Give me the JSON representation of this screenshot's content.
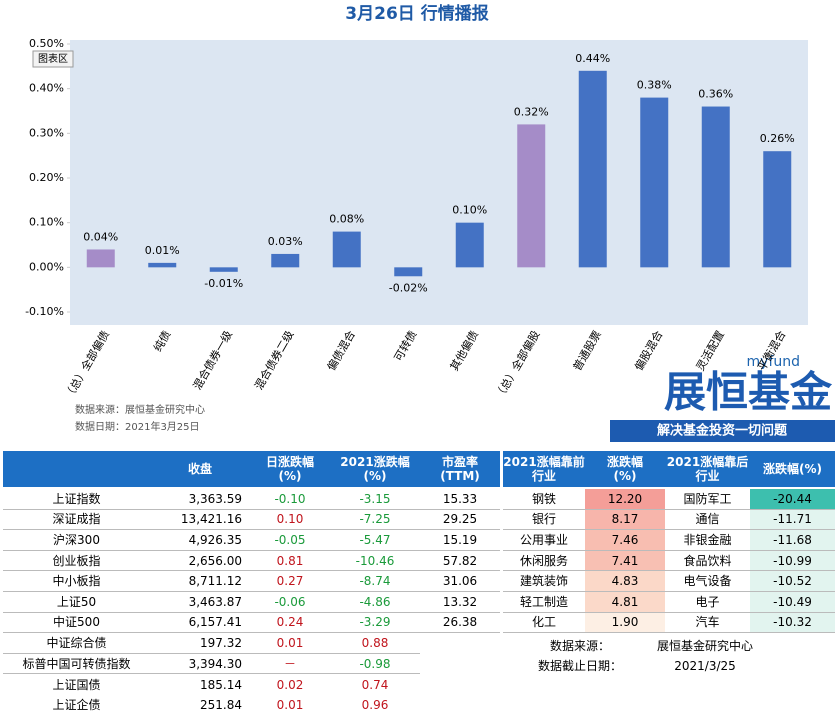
{
  "chart_data": {
    "type": "bar",
    "title": "3月26日 行情播报",
    "tooltip": "图表区",
    "categories": [
      "（总）全部偏债",
      "纯债",
      "混合债券一级",
      "混合债券二级",
      "偏债混合",
      "可转债",
      "其他偏债",
      "（总）全部偏股",
      "普通股票",
      "偏股混合",
      "灵活配置",
      "平衡混合"
    ],
    "values": [
      0.04,
      0.01,
      -0.01,
      0.03,
      0.08,
      -0.02,
      0.1,
      0.32,
      0.44,
      0.38,
      0.36,
      0.26
    ],
    "value_labels": [
      "0.04%",
      "0.01%",
      "-0.01%",
      "0.03%",
      "0.08%",
      "-0.02%",
      "0.10%",
      "0.32%",
      "0.44%",
      "0.38%",
      "0.36%",
      "0.26%"
    ],
    "colors": [
      "#a58cc8",
      "#4472c4",
      "#4472c4",
      "#4472c4",
      "#4472c4",
      "#4472c4",
      "#4472c4",
      "#a58cc8",
      "#4472c4",
      "#4472c4",
      "#4472c4",
      "#4472c4"
    ],
    "ylim": [
      -0.1,
      0.5
    ],
    "yticks": [
      {
        "value": -0.1,
        "label": "-0.10%"
      },
      {
        "value": 0,
        "label": "0.00%"
      },
      {
        "value": 0.1,
        "label": "0.10%"
      },
      {
        "value": 0.2,
        "label": "0.20%"
      },
      {
        "value": 0.3,
        "label": "0.30%"
      },
      {
        "value": 0.4,
        "label": "0.40%"
      },
      {
        "value": 0.5,
        "label": "0.50%"
      }
    ]
  },
  "notes": [
    "数据来源：展恒基金研究中心",
    "数据日期：2021年3月25日"
  ],
  "logo": {
    "small": "myfund",
    "name": "展恒基金",
    "slogan": "解决基金投资一切问题"
  },
  "left_table": {
    "header": [
      "收盘",
      "日涨跌幅\n(%)",
      "2021涨跌幅\n(%)",
      "市盈率\n(TTM)"
    ],
    "rows": [
      [
        "上证指数",
        "3,363.59",
        "-0.10",
        "-3.15",
        "15.33"
      ],
      [
        "深证成指",
        "13,421.16",
        "0.10",
        "-7.25",
        "29.25"
      ],
      [
        "沪深300",
        "4,926.35",
        "-0.05",
        "-5.47",
        "15.19"
      ],
      [
        "创业板指",
        "2,656.00",
        "0.81",
        "-10.46",
        "57.82"
      ],
      [
        "中小板指",
        "8,711.12",
        "0.27",
        "-8.74",
        "31.06"
      ],
      [
        "上证50",
        "3,463.87",
        "-0.06",
        "-4.86",
        "13.32"
      ],
      [
        "中证500",
        "6,157.41",
        "0.24",
        "-3.29",
        "26.38"
      ],
      [
        "中证综合债",
        "197.32",
        "0.01",
        "0.88"
      ],
      [
        "标普中国可转债指数",
        "3,394.30",
        "－",
        "-0.98"
      ],
      [
        "上证国债",
        "185.14",
        "0.02",
        "0.74"
      ],
      [
        "上证企债",
        "251.84",
        "0.01",
        "0.96"
      ]
    ]
  },
  "right_table": {
    "header": [
      "2021涨幅靠前\n行业",
      "涨跌幅\n(%)",
      "2021涨幅靠后\n行业",
      "涨跌幅(%)"
    ],
    "rows": [
      [
        "钢铁",
        "12.20",
        "国防军工",
        "-20.44"
      ],
      [
        "银行",
        "8.17",
        "通信",
        "-11.71"
      ],
      [
        "公用事业",
        "7.46",
        "非银金融",
        "-11.68"
      ],
      [
        "休闲服务",
        "7.41",
        "食品饮料",
        "-10.99"
      ],
      [
        "建筑装饰",
        "4.83",
        "电气设备",
        "-10.52"
      ],
      [
        "轻工制造",
        "4.81",
        "电子",
        "-10.49"
      ],
      [
        "化工",
        "1.90",
        "汽车",
        "-10.32"
      ]
    ],
    "top_colors": [
      "#f49e98",
      "#f7b5ab",
      "#f8beb1",
      "#f8c0b3",
      "#fbd8c8",
      "#fbd9c9",
      "#fdefe4"
    ],
    "bottom_colors": [
      "#3dbfae",
      "#e2f4ef",
      "#e2f4ef",
      "#e2f4ef",
      "#e2f4ef",
      "#e2f4ef",
      "#e2f4ef"
    ],
    "notes": [
      [
        "数据来源：",
        "展恒基金研究中心"
      ],
      [
        "数据截止日期：",
        "2021/3/25"
      ]
    ]
  }
}
